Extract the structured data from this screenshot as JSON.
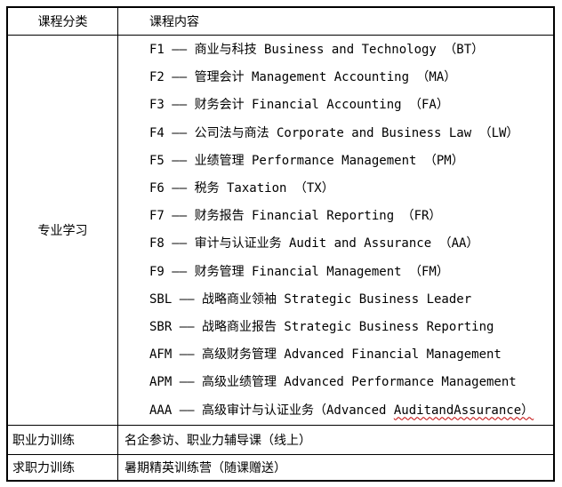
{
  "colors": {
    "border": "#000000",
    "text": "#000000",
    "background": "#ffffff",
    "spellcheck_underline": "#c00000"
  },
  "table": {
    "header": {
      "category": "课程分类",
      "content": "课程内容"
    },
    "professional": {
      "category": "专业学习",
      "courses": [
        {
          "main": "F1 —— 商业与科技 Business and Technology （BT）"
        },
        {
          "main": "F2 —— 管理会计 Management Accounting （MA）"
        },
        {
          "main": "F3 —— 财务会计 Financial Accounting （FA）"
        },
        {
          "main": "F4 —— 公司法与商法 Corporate and Business Law （LW）"
        },
        {
          "main": "F5 —— 业绩管理 Performance Management （PM）"
        },
        {
          "main": "F6 —— 税务 Taxation （TX）"
        },
        {
          "main": "F7 —— 财务报告 Financial Reporting （FR）"
        },
        {
          "main": "F8 —— 审计与认证业务 Audit and Assurance （AA）"
        },
        {
          "main": "F9 —— 财务管理 Financial Management （FM）"
        },
        {
          "main": "SBL —— 战略商业领袖 Strategic Business Leader"
        },
        {
          "main": "SBR —— 战略商业报告 Strategic Business Reporting"
        },
        {
          "main": "AFM —— 高级财务管理 Advanced Financial Management"
        },
        {
          "main": "APM —— 高级业绩管理 Advanced Performance Management"
        },
        {
          "main": "AAA —— 高级审计与认证业务（Advanced ",
          "misspelled": "AuditandAssurance）"
        }
      ]
    },
    "career_training": {
      "category": "职业力训练",
      "content": "名企参访、职业力辅导课（线上）"
    },
    "job_training": {
      "category": "求职力训练",
      "content": "暑期精英训练营（随课赠送）"
    }
  }
}
